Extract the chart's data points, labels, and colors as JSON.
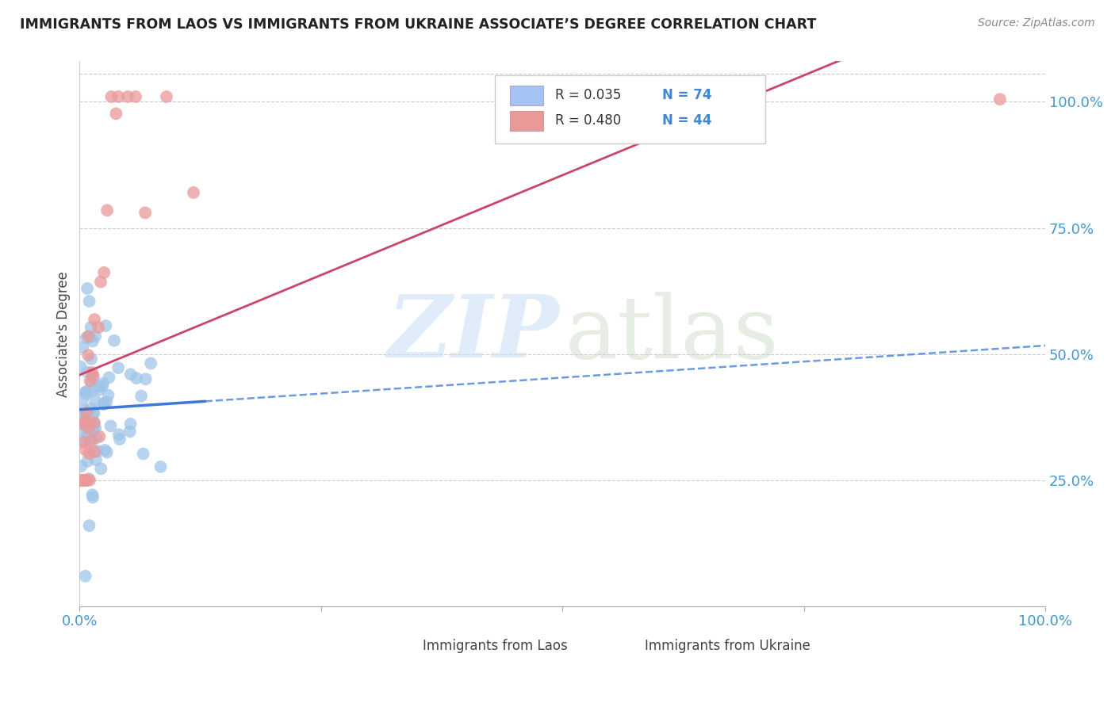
{
  "title": "IMMIGRANTS FROM LAOS VS IMMIGRANTS FROM UKRAINE ASSOCIATE’S DEGREE CORRELATION CHART",
  "source": "Source: ZipAtlas.com",
  "ylabel": "Associate's Degree",
  "yticks": [
    "25.0%",
    "50.0%",
    "75.0%",
    "100.0%"
  ],
  "ytick_vals": [
    0.25,
    0.5,
    0.75,
    1.0
  ],
  "laos_color": "#9fc5e8",
  "ukraine_color": "#ea9999",
  "laos_line_color": "#3c78d8",
  "ukraine_line_color": "#cc4466",
  "legend_laos_box": "#a4c2f4",
  "legend_ukraine_box": "#ea9999",
  "watermark_zip": "ZIP",
  "watermark_atlas": "atlas"
}
